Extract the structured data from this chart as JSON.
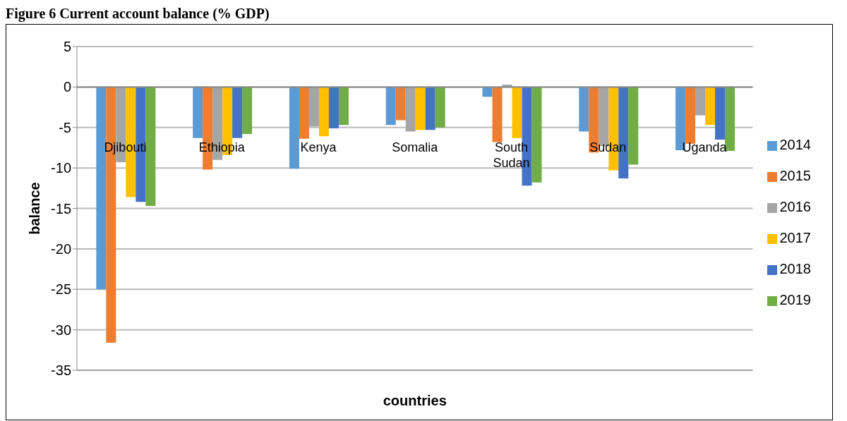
{
  "chart_data": {
    "type": "bar",
    "title": "Figure 6 Current account balance (% GDP)",
    "xlabel": "countries",
    "ylabel": "balance",
    "categories": [
      "Djibouti",
      "Ethiopia",
      "Kenya",
      "Somalia",
      "South Sudan",
      "Sudan",
      "Uganda"
    ],
    "series": [
      {
        "name": "2014",
        "color": "#5b9bd5",
        "values": [
          -25,
          -6.3,
          -10.1,
          -4.7,
          -1.2,
          -5.5,
          -7.8
        ]
      },
      {
        "name": "2015",
        "color": "#ed7d31",
        "values": [
          -31.6,
          -10.2,
          -6.4,
          -4.1,
          -6.8,
          -8.1,
          -7.0
        ]
      },
      {
        "name": "2016",
        "color": "#a5a5a5",
        "values": [
          -9.3,
          -9.0,
          -4.9,
          -5.5,
          0.3,
          -7.3,
          -3.5
        ]
      },
      {
        "name": "2017",
        "color": "#ffc000",
        "values": [
          -13.6,
          -8.4,
          -6.1,
          -5.3,
          -6.3,
          -10.3,
          -4.7
        ]
      },
      {
        "name": "2018",
        "color": "#4472c4",
        "values": [
          -14.2,
          -6.3,
          -5.1,
          -5.3,
          -12.2,
          -11.3,
          -6.5
        ]
      },
      {
        "name": "2019",
        "color": "#70ad47",
        "values": [
          -14.7,
          -5.8,
          -4.7,
          -5.0,
          -11.8,
          -9.6,
          -7.9
        ]
      }
    ],
    "ylim": [
      -35,
      5
    ],
    "yticks": [
      5,
      0,
      -5,
      -10,
      -15,
      -20,
      -25,
      -30,
      -35
    ],
    "grid": "y",
    "legend": "right"
  }
}
